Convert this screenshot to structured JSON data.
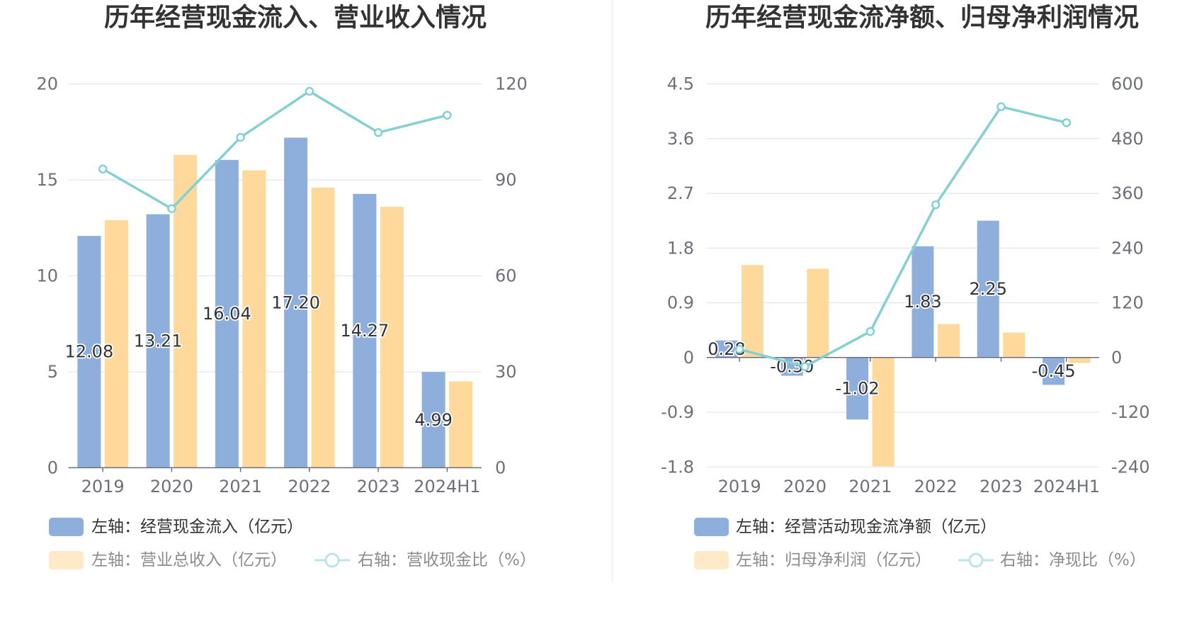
{
  "chart_data": [
    {
      "type": "bar",
      "title": "历年经营现金流入、营业收入情况",
      "categories": [
        "2019",
        "2020",
        "2021",
        "2022",
        "2023",
        "2024H1"
      ],
      "y_left": {
        "ylim": [
          0,
          20
        ],
        "ticks": [
          "0",
          "5",
          "10",
          "15",
          "20"
        ]
      },
      "y_right": {
        "ylim": [
          0,
          120
        ],
        "ticks": [
          "0",
          "30",
          "60",
          "90",
          "120"
        ]
      },
      "grid": true,
      "legend_placement": "bottom",
      "series": [
        {
          "name": "左轴：经营现金流入（亿元）",
          "type": "bar",
          "y_axis": "left",
          "color": "#8eaedc",
          "values": [
            12.08,
            13.21,
            16.04,
            17.2,
            14.27,
            4.99
          ],
          "labels": [
            "12.08",
            "13.21",
            "16.04",
            "17.20",
            "14.27",
            "4.99"
          ]
        },
        {
          "name": "左轴：营业总收入（亿元）",
          "type": "bar",
          "y_axis": "left",
          "color": "#fed99b",
          "values": [
            12.9,
            16.3,
            15.5,
            14.6,
            13.6,
            4.5
          ]
        },
        {
          "name": "右轴：营收现金比（%）",
          "type": "line",
          "y_axis": "right",
          "color": "#85d0d5",
          "values": [
            93.4,
            81.0,
            103.3,
            117.7,
            104.8,
            110.2
          ]
        }
      ]
    },
    {
      "type": "bar",
      "title": "历年经营现金流净额、归母净利润情况",
      "categories": [
        "2019",
        "2020",
        "2021",
        "2022",
        "2023",
        "2024H1"
      ],
      "y_left": {
        "ylim": [
          -1.8,
          4.5
        ],
        "ticks": [
          "-1.8",
          "-0.9",
          "0",
          "0.9",
          "1.8",
          "2.7",
          "3.6",
          "4.5"
        ]
      },
      "y_right": {
        "ylim": [
          -240,
          600
        ],
        "ticks": [
          "-240",
          "-120",
          "0",
          "120",
          "240",
          "360",
          "480",
          "600"
        ]
      },
      "grid": true,
      "legend_placement": "bottom",
      "series": [
        {
          "name": "左轴：经营活动现金流净额（亿元）",
          "type": "bar",
          "y_axis": "left",
          "color": "#8eaedc",
          "values": [
            0.28,
            -0.3,
            -1.02,
            1.83,
            2.25,
            -0.45
          ],
          "labels": [
            "0.28",
            "-0.30",
            "-1.02",
            "1.83",
            "2.25",
            "-0.45"
          ]
        },
        {
          "name": "左轴：归母净利润（亿元）",
          "type": "bar",
          "y_axis": "left",
          "color": "#fed99b",
          "values": [
            1.52,
            1.46,
            -1.79,
            0.55,
            0.41,
            -0.09
          ]
        },
        {
          "name": "右轴：净现比（%）",
          "type": "line",
          "y_axis": "right",
          "color": "#85d0d5",
          "values": [
            18,
            -20,
            57,
            335,
            550,
            515
          ]
        }
      ]
    }
  ]
}
